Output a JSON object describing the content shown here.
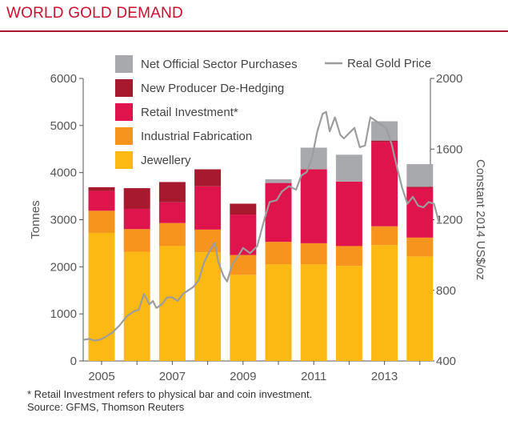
{
  "title": "WORLD GOLD DEMAND",
  "footnote": "* Retail Investment refers to physical bar and coin investment.",
  "source": "Source: GFMS, Thomson Reuters",
  "colors": {
    "jewellery": "#fdb913",
    "industrial": "#f7941d",
    "retail": "#e0144c",
    "dehedging": "#a6192e",
    "official": "#a7a9ac",
    "price": "#9d9d9d",
    "axis": "#555555",
    "title": "#c8102e"
  },
  "chart_data": {
    "type": "bar",
    "stacked": true,
    "categories": [
      "2005",
      "2006",
      "2007",
      "2008",
      "2009",
      "2010",
      "2011",
      "2012",
      "2013",
      "2014"
    ],
    "xticklabels": [
      "2005",
      "2007",
      "2009",
      "2011",
      "2013"
    ],
    "ylabel": "Tonnes",
    "ylim": [
      0,
      6000
    ],
    "yticks": [
      0,
      1000,
      2000,
      3000,
      4000,
      5000,
      6000
    ],
    "y2label": "Constant 2014 US$/oz",
    "y2lim": [
      400,
      2000
    ],
    "y2ticks": [
      400,
      800,
      1200,
      1600,
      2000
    ],
    "legend_position": "top",
    "series": [
      {
        "name": "Jewellery",
        "color": "#fdb913",
        "values": [
          2720,
          2320,
          2440,
          2310,
          1830,
          2050,
          2050,
          2020,
          2460,
          2220
        ]
      },
      {
        "name": "Industrial Fabrication",
        "color": "#f7941d",
        "values": [
          470,
          480,
          490,
          480,
          420,
          480,
          450,
          420,
          400,
          400
        ]
      },
      {
        "name": "Retail Investment*",
        "color": "#e0144c",
        "values": [
          420,
          430,
          440,
          920,
          860,
          1250,
          1570,
          1370,
          1790,
          1060
        ]
      },
      {
        "name": "New Producer De-Hedging",
        "color": "#a6192e",
        "values": [
          80,
          440,
          430,
          360,
          230,
          0,
          0,
          0,
          30,
          20
        ]
      },
      {
        "name": "Net Official Sector Purchases",
        "color": "#a7a9ac",
        "values": [
          0,
          0,
          0,
          0,
          0,
          80,
          460,
          570,
          410,
          480
        ]
      }
    ],
    "line_series": {
      "name": "Real Gold Price",
      "axis": "right",
      "color": "#9d9d9d",
      "x": [
        2004.5,
        2004.65,
        2004.8,
        2004.95,
        2005.1,
        2005.3,
        2005.5,
        2005.7,
        2005.9,
        2006.05,
        2006.2,
        2006.35,
        2006.45,
        2006.55,
        2006.7,
        2006.85,
        2007.0,
        2007.15,
        2007.3,
        2007.45,
        2007.6,
        2007.75,
        2007.9,
        2008.05,
        2008.2,
        2008.3,
        2008.45,
        2008.55,
        2008.7,
        2008.85,
        2009.0,
        2009.2,
        2009.4,
        2009.6,
        2009.75,
        2009.95,
        2010.1,
        2010.3,
        2010.5,
        2010.65,
        2010.8,
        2010.95,
        2011.1,
        2011.25,
        2011.35,
        2011.45,
        2011.6,
        2011.75,
        2011.85,
        2012.0,
        2012.15,
        2012.3,
        2012.45,
        2012.6,
        2012.75,
        2012.9,
        2013.05,
        2013.2,
        2013.35,
        2013.5,
        2013.65,
        2013.8,
        2013.95,
        2014.1,
        2014.25,
        2014.4,
        2014.55
      ],
      "y": [
        520,
        525,
        515,
        520,
        535,
        560,
        600,
        650,
        680,
        690,
        780,
        720,
        740,
        700,
        720,
        760,
        760,
        740,
        780,
        800,
        820,
        860,
        960,
        1020,
        1070,
        960,
        880,
        850,
        950,
        990,
        1040,
        1010,
        1050,
        1200,
        1300,
        1310,
        1360,
        1390,
        1370,
        1450,
        1470,
        1550,
        1700,
        1800,
        1810,
        1700,
        1780,
        1680,
        1660,
        1690,
        1720,
        1610,
        1620,
        1780,
        1760,
        1740,
        1720,
        1630,
        1500,
        1380,
        1290,
        1330,
        1280,
        1270,
        1300,
        1290,
        1180
      ]
    }
  }
}
